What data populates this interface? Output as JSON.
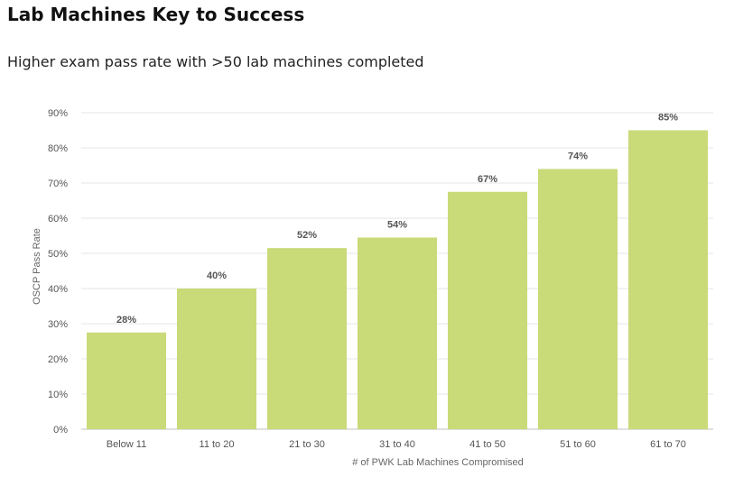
{
  "page": {
    "title": "Lab Machines Key to Success",
    "subtitle": "Higher exam pass rate with >50 lab machines completed"
  },
  "chart_data": {
    "type": "bar",
    "categories": [
      "Below 11",
      "11 to 20",
      "21 to 30",
      "31 to 40",
      "41 to 50",
      "51 to 60",
      "61 to 70"
    ],
    "values": [
      28,
      40,
      52,
      54,
      67,
      74,
      85
    ],
    "bar_values": [
      27.5,
      40,
      51.5,
      54.5,
      67.5,
      74,
      85
    ],
    "data_labels": [
      "28%",
      "40%",
      "52%",
      "54%",
      "67%",
      "74%",
      "85%"
    ],
    "y_ticks": [
      0,
      10,
      20,
      30,
      40,
      50,
      60,
      70,
      80,
      90
    ],
    "y_tick_labels": [
      "0%",
      "10%",
      "20%",
      "30%",
      "40%",
      "50%",
      "60%",
      "70%",
      "80%",
      "90%"
    ],
    "ylim": [
      0,
      90
    ],
    "xlabel": "# of PWK Lab Machines Compromised",
    "ylabel": "OSCP Pass Rate",
    "grid": true,
    "legend": "none",
    "bar_color": "#c9da78",
    "grid_color": "#e6e6e6",
    "axis_color": "#bfbfbf"
  }
}
